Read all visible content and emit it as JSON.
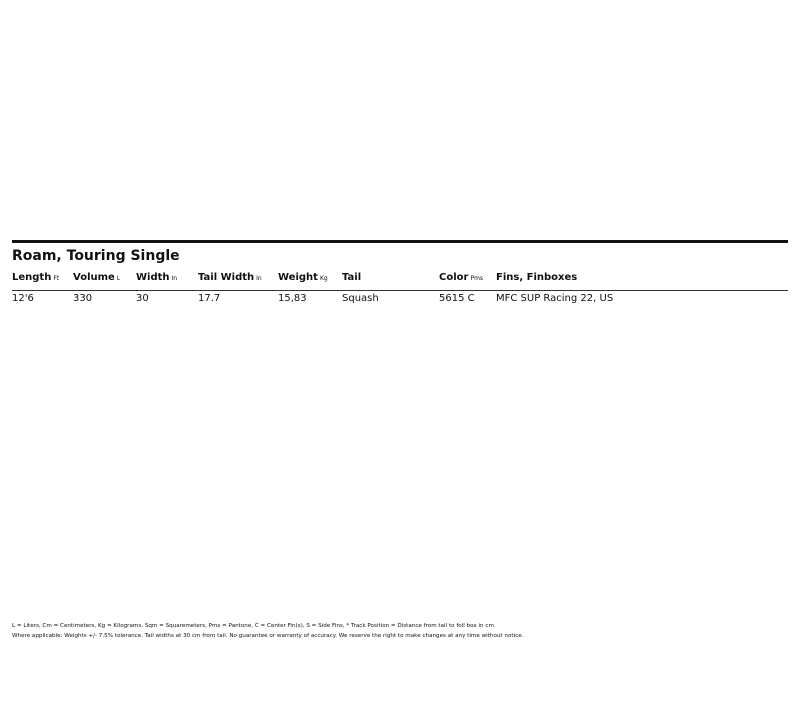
{
  "title": "Roam, Touring Single",
  "columns": [
    {
      "label": "Length",
      "unit": "Ft"
    },
    {
      "label": "Volume",
      "unit": "L"
    },
    {
      "label": "Width",
      "unit": "In"
    },
    {
      "label": "Tail Width",
      "unit": "In"
    },
    {
      "label": "Weight",
      "unit": "Kg"
    },
    {
      "label": "Tail",
      "unit": ""
    },
    {
      "label": "Color",
      "unit": "Pms"
    },
    {
      "label": "Fins, Finboxes",
      "unit": ""
    }
  ],
  "rows": [
    [
      "12'6",
      "330",
      "30",
      "17.7",
      "15,83",
      "Squash",
      "5615 C",
      "MFC SUP Racing 22, US"
    ]
  ],
  "footnotes": [
    "L = Liters, Cm = Centimeters, Kg = Kilograms, Sqm = Squaremeters, Pms = Pantone, C = Center Fin(s), S = Side Fins, * Track Position = Distance from tail to foil box  in cm",
    "Where applicable: Weights +/- 7.5% tolerance. Tail widths at 30 cm from tail. No guarantee or warranty of accuracy. We reserve the right to make changes at any time without notice."
  ]
}
